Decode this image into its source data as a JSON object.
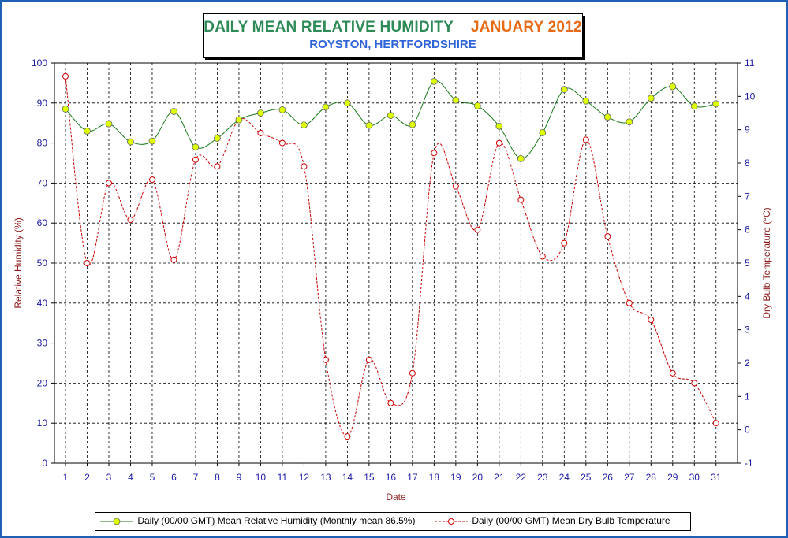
{
  "title": {
    "main": "DAILY MEAN RELATIVE HUMIDITY",
    "period": "JANUARY 2012",
    "subtitle": "ROYSTON, HERTFORDSHIRE"
  },
  "colors": {
    "frame": "#1f5fb4",
    "humidity_line": "#1b7a1b",
    "humidity_marker": "#ddff00",
    "temperature_line": "#cc0000",
    "axis_text": "#1a1aa6",
    "axis_label": "#8b1a1a"
  },
  "chart_data": {
    "type": "line",
    "xlabel": "Date",
    "ylabel_left": "Relative Humidity (%)",
    "ylabel_right": "Dry Bulb Temperature (°C)",
    "x": [
      1,
      2,
      3,
      4,
      5,
      6,
      7,
      8,
      9,
      10,
      11,
      12,
      13,
      14,
      15,
      16,
      17,
      18,
      19,
      20,
      21,
      22,
      23,
      24,
      25,
      26,
      27,
      28,
      29,
      30,
      31
    ],
    "y_left_lim": [
      0,
      100
    ],
    "y_left_ticks": [
      0,
      10,
      20,
      30,
      40,
      50,
      60,
      70,
      80,
      90,
      100
    ],
    "y_right_lim": [
      -1,
      11
    ],
    "y_right_ticks": [
      -1,
      0,
      1,
      2,
      3,
      4,
      5,
      6,
      7,
      8,
      9,
      10,
      11
    ],
    "grid": true,
    "legend_position": "bottom",
    "series": [
      {
        "name": "Daily (00/00 GMT) Mean Relative Humidity (Monthly mean 86.5%)",
        "axis": "left",
        "style": "solid",
        "values": [
          88.5,
          83,
          84.8,
          80.3,
          80.5,
          87.9,
          79,
          81.2,
          85.8,
          87.5,
          88.3,
          84.5,
          89,
          90,
          84.4,
          86.9,
          84.6,
          95.4,
          90.7,
          89.3,
          84.2,
          76.1,
          82.6,
          93.4,
          90.5,
          86.5,
          85.3,
          91.2,
          94.1,
          89.2,
          89.8
        ]
      },
      {
        "name": "Daily (00/00 GMT) Mean Dry Bulb Temperature",
        "axis": "right",
        "style": "dashed",
        "values": [
          10.6,
          5,
          7.4,
          6.3,
          7.5,
          5.1,
          8.1,
          7.9,
          9.3,
          8.9,
          8.6,
          7.9,
          2.1,
          -0.2,
          2.1,
          0.8,
          1.7,
          8.3,
          7.3,
          6,
          8.6,
          6.9,
          5.2,
          5.6,
          8.7,
          5.8,
          3.8,
          3.3,
          1.7,
          1.4,
          0.2
        ]
      }
    ]
  }
}
